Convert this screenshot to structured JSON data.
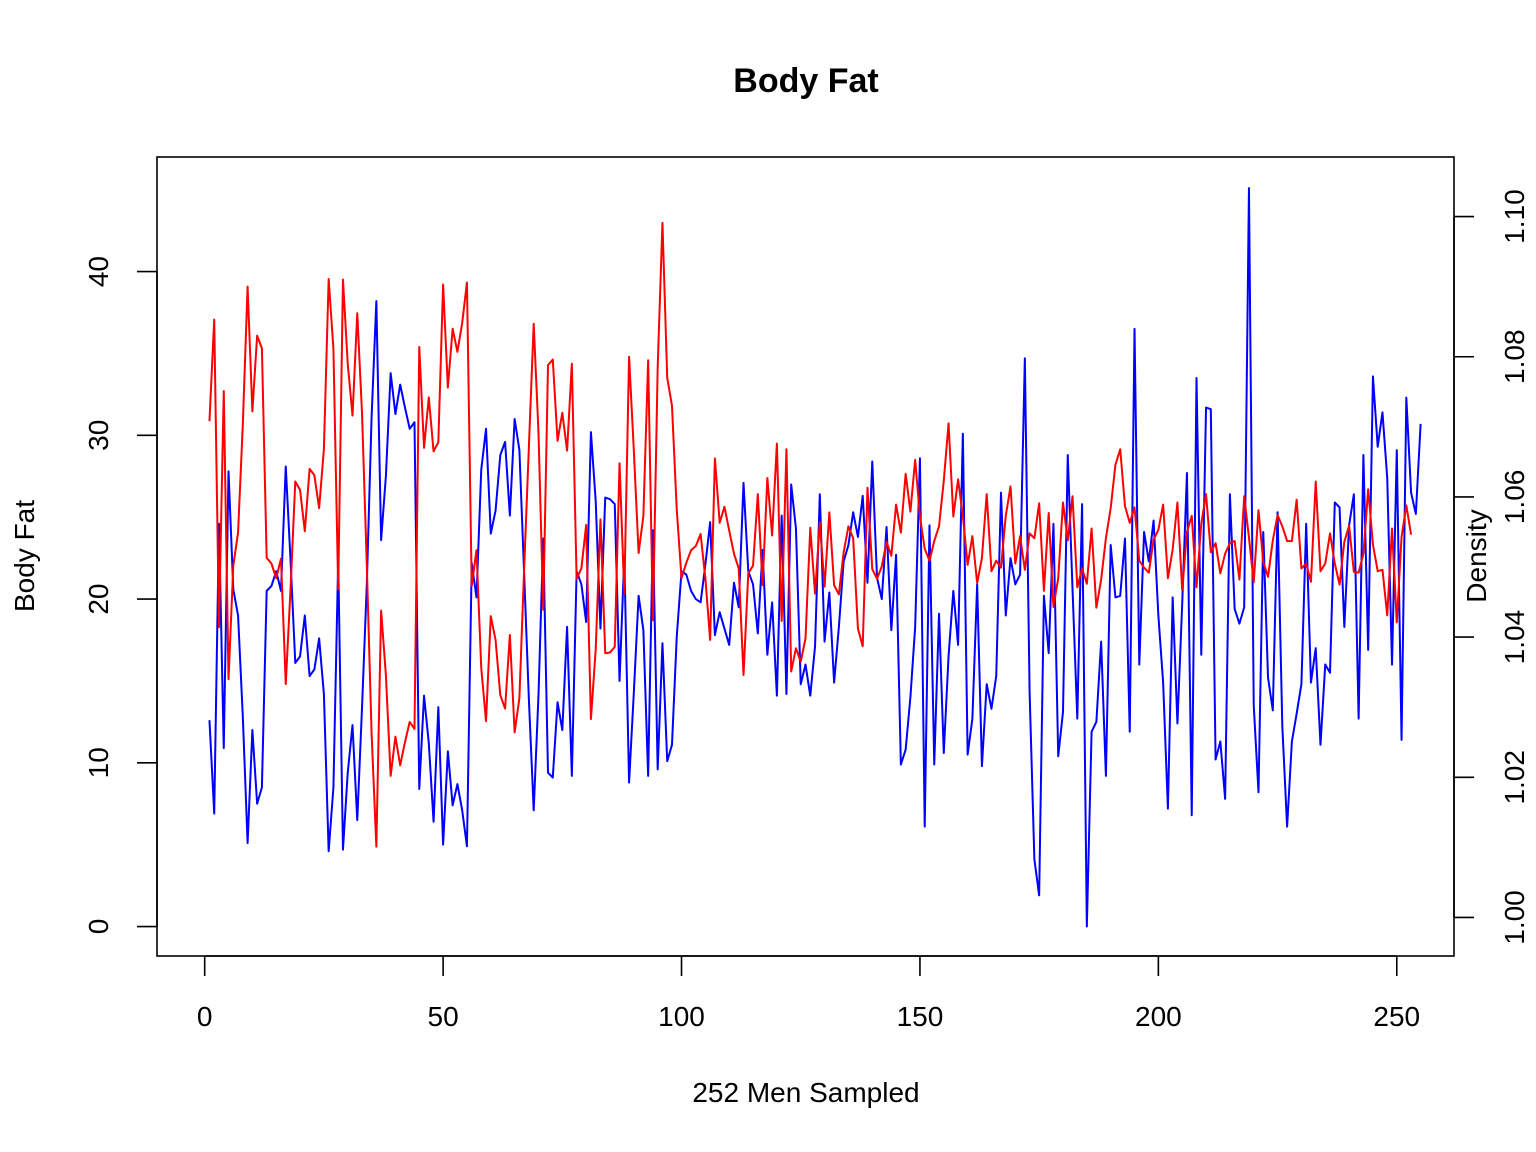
{
  "chart_data": {
    "type": "line",
    "title": "Body Fat",
    "xlabel": "252 Men Sampled",
    "ylabel": "Body Fat",
    "y2label": "Density",
    "xlim": [
      -10,
      262
    ],
    "ylim": [
      -1.8,
      47.0
    ],
    "y2lim": [
      0.9945,
      1.1085
    ],
    "xticks": [
      0,
      50,
      100,
      150,
      200,
      250
    ],
    "yticks": [
      0,
      10,
      20,
      30,
      40
    ],
    "y2ticks": [
      1.0,
      1.02,
      1.04,
      1.06,
      1.08,
      1.1
    ],
    "y2tick_labels": [
      "1.00",
      "1.02",
      "1.04",
      "1.06",
      "1.08",
      "1.10"
    ],
    "grid": false,
    "legend": "none",
    "series": [
      {
        "axis": "left",
        "color": "#0000ff",
        "x_start": 1,
        "values": [
          12.6,
          6.9,
          24.6,
          10.9,
          27.8,
          20.6,
          19.0,
          12.8,
          5.1,
          12.0,
          7.5,
          8.5,
          20.5,
          20.8,
          21.7,
          20.5,
          28.1,
          22.4,
          16.1,
          16.5,
          19.0,
          15.3,
          15.7,
          17.6,
          14.2,
          4.6,
          8.5,
          22.4,
          4.7,
          9.4,
          12.3,
          6.5,
          13.4,
          20.9,
          31.1,
          38.2,
          23.6,
          27.5,
          33.8,
          31.3,
          33.1,
          31.7,
          30.4,
          30.8,
          8.4,
          14.1,
          11.2,
          6.4,
          13.4,
          5.0,
          10.7,
          7.4,
          8.7,
          7.1,
          4.9,
          22.2,
          20.1,
          27.9,
          30.4,
          24.0,
          25.4,
          28.8,
          29.6,
          25.1,
          31.0,
          29.1,
          21.5,
          13.8,
          7.1,
          14.1,
          23.7,
          9.4,
          9.1,
          13.7,
          12.0,
          18.3,
          9.2,
          21.7,
          20.9,
          18.6,
          30.2,
          26.0,
          18.2,
          26.2,
          26.1,
          25.8,
          15.0,
          22.6,
          8.8,
          14.3,
          20.2,
          18.1,
          9.2,
          24.2,
          9.6,
          17.3,
          10.1,
          11.1,
          17.7,
          21.7,
          21.5,
          20.5,
          20.0,
          19.8,
          22.1,
          24.7,
          17.8,
          19.2,
          18.2,
          17.2,
          21.0,
          19.5,
          27.1,
          21.7,
          20.9,
          17.9,
          23.0,
          16.6,
          19.8,
          14.1,
          25.1,
          14.2,
          27.0,
          24.3,
          14.8,
          16.0,
          14.1,
          17.1,
          26.4,
          17.4,
          20.4,
          14.9,
          18.3,
          22.3,
          23.3,
          25.3,
          23.8,
          26.3,
          21.0,
          28.4,
          21.3,
          20.0,
          24.4,
          18.1,
          22.7,
          9.9,
          10.8,
          14.0,
          18.3,
          28.6,
          6.1,
          24.5,
          9.9,
          19.1,
          10.6,
          16.5,
          20.5,
          17.2,
          30.1,
          10.5,
          12.7,
          20.9,
          9.8,
          14.8,
          13.3,
          15.3,
          26.5,
          19.0,
          22.5,
          20.9,
          21.5,
          34.7,
          14.3,
          4.1,
          1.9,
          20.2,
          16.7,
          24.6,
          10.4,
          13.1,
          28.8,
          20.6,
          12.7,
          25.8,
          0.0,
          11.9,
          12.5,
          17.4,
          9.2,
          23.3,
          20.1,
          20.2,
          23.7,
          11.9,
          36.5,
          16.0,
          24.1,
          22.3,
          24.8,
          19.0,
          14.9,
          7.2,
          20.1,
          12.4,
          19.7,
          27.7,
          6.8,
          33.5,
          16.6,
          31.7,
          31.6,
          10.2,
          11.3,
          7.8,
          26.4,
          19.4,
          18.5,
          19.5,
          45.1,
          13.5,
          8.2,
          24.1,
          15.2,
          13.2,
          25.3,
          12.2,
          6.1,
          11.3,
          13.0,
          14.8,
          24.6,
          14.9,
          17.0,
          11.1,
          16.0,
          15.5,
          25.9,
          25.6,
          18.3,
          24.5,
          26.4,
          12.7,
          28.8,
          16.9,
          33.6,
          29.3,
          31.4,
          27.4,
          16.0,
          29.1,
          11.4,
          32.3,
          26.5,
          25.2,
          30.7
        ]
      },
      {
        "axis": "right",
        "color": "#ff0000",
        "x_start": 1,
        "values": [
          1.0708,
          1.0853,
          1.0414,
          1.0751,
          1.034,
          1.0502,
          1.0549,
          1.0704,
          1.09,
          1.0722,
          1.083,
          1.0812,
          1.0513,
          1.0505,
          1.0484,
          1.0512,
          1.0333,
          1.0468,
          1.0622,
          1.061,
          1.0551,
          1.064,
          1.0631,
          1.0584,
          1.0668,
          1.0911,
          1.0811,
          1.0468,
          1.091,
          1.079,
          1.0716,
          1.0862,
          1.0719,
          1.0502,
          1.0263,
          1.0101,
          1.0438,
          1.0346,
          1.0202,
          1.0258,
          1.0217,
          1.025,
          1.0279,
          1.0269,
          1.0814,
          1.067,
          1.0742,
          1.0665,
          1.0678,
          1.0903,
          1.0756,
          1.084,
          1.0807,
          1.0848,
          1.0906,
          1.0473,
          1.0524,
          1.0356,
          1.028,
          1.043,
          1.0396,
          1.0317,
          1.0298,
          1.0403,
          1.0264,
          1.0313,
          1.0499,
          1.0673,
          1.0847,
          1.0693,
          1.0439,
          1.0788,
          1.0796,
          1.068,
          1.072,
          1.0666,
          1.079,
          1.0483,
          1.0498,
          1.056,
          1.0283,
          1.0382,
          1.0568,
          1.0377,
          1.0378,
          1.0386,
          1.0648,
          1.0462,
          1.08,
          1.0666,
          1.052,
          1.0573,
          1.0795,
          1.0424,
          1.0785,
          1.0991,
          1.077,
          1.073,
          1.0582,
          1.0484,
          1.0506,
          1.0524,
          1.053,
          1.0547,
          1.0484,
          1.0396,
          1.0655,
          1.0563,
          1.0586,
          1.0552,
          1.0519,
          1.0498,
          1.0346,
          1.0491,
          1.0502,
          1.0604,
          1.0474,
          1.0627,
          1.0545,
          1.0676,
          1.0423,
          1.0668,
          1.0351,
          1.0384,
          1.0365,
          1.0398,
          1.0556,
          1.0462,
          1.0564,
          1.0472,
          1.0578,
          1.0474,
          1.0461,
          1.0521,
          1.0558,
          1.0541,
          1.0412,
          1.0387,
          1.0613,
          1.0497,
          1.0483,
          1.0501,
          1.0536,
          1.0516,
          1.0589,
          1.0549,
          1.0633,
          1.0579,
          1.0653,
          1.0572,
          1.0526,
          1.0509,
          1.0537,
          1.0558,
          1.0623,
          1.0705,
          1.0572,
          1.0625,
          1.0573,
          1.0503,
          1.0544,
          1.0477,
          1.0513,
          1.0604,
          1.0494,
          1.0509,
          1.0499,
          1.0573,
          1.0615,
          1.0505,
          1.0544,
          1.0496,
          1.0548,
          1.0541,
          1.0591,
          1.0466,
          1.0577,
          1.0443,
          1.0484,
          1.0592,
          1.0538,
          1.0601,
          1.0471,
          1.0498,
          1.0476,
          1.0555,
          1.0442,
          1.0482,
          1.0541,
          1.0584,
          1.0646,
          1.0668,
          1.0587,
          1.0563,
          1.0585,
          1.0509,
          1.0499,
          1.0492,
          1.0539,
          1.0553,
          1.0589,
          1.0484,
          1.0525,
          1.0592,
          1.0467,
          1.055,
          1.0573,
          1.0471,
          1.0562,
          1.0604,
          1.0521,
          1.0534,
          1.0491,
          1.0519,
          1.0534,
          1.0537,
          1.0482,
          1.0601,
          1.0542,
          1.0478,
          1.0581,
          1.0507,
          1.0486,
          1.0538,
          1.0574,
          1.0558,
          1.0537,
          1.0537,
          1.0596,
          1.0498,
          1.0505,
          1.0479,
          1.0622,
          1.0494,
          1.0505,
          1.0548,
          1.0505,
          1.0475,
          1.0536,
          1.0559,
          1.0493,
          1.0492,
          1.0519,
          1.0611,
          1.0532,
          1.0494,
          1.0496,
          1.0431,
          1.0555,
          1.0421,
          1.0543,
          1.0588,
          1.0546
        ]
      }
    ]
  }
}
